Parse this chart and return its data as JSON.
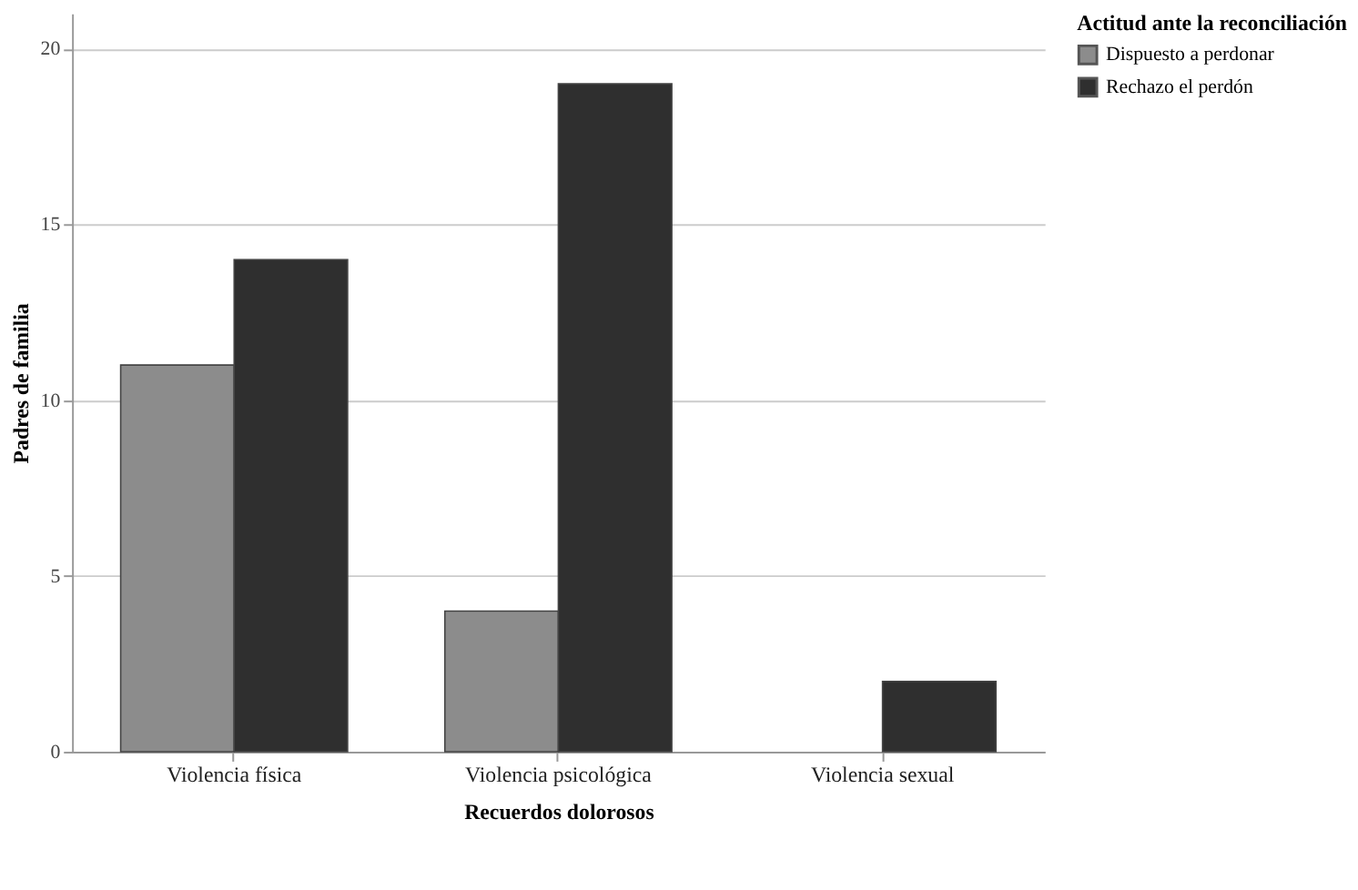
{
  "chart_data": {
    "type": "bar",
    "xlabel": "Recuerdos dolorosos",
    "ylabel": "Padres de familia",
    "legend_title": "Actitud ante la reconciliación",
    "categories": [
      "Violencia física",
      "Violencia psicológica",
      "Violencia sexual"
    ],
    "series": [
      {
        "name": "Dispuesto a perdonar",
        "color": "#8c8c8c",
        "values": [
          11,
          4,
          null
        ]
      },
      {
        "name": "Rechazo el perdón",
        "color": "#2f2f2f",
        "values": [
          14,
          19,
          2
        ]
      }
    ],
    "ylim": [
      0,
      21
    ],
    "yticks": [
      0,
      5,
      10,
      15,
      20
    ],
    "grid": "y",
    "legend": "top right"
  }
}
